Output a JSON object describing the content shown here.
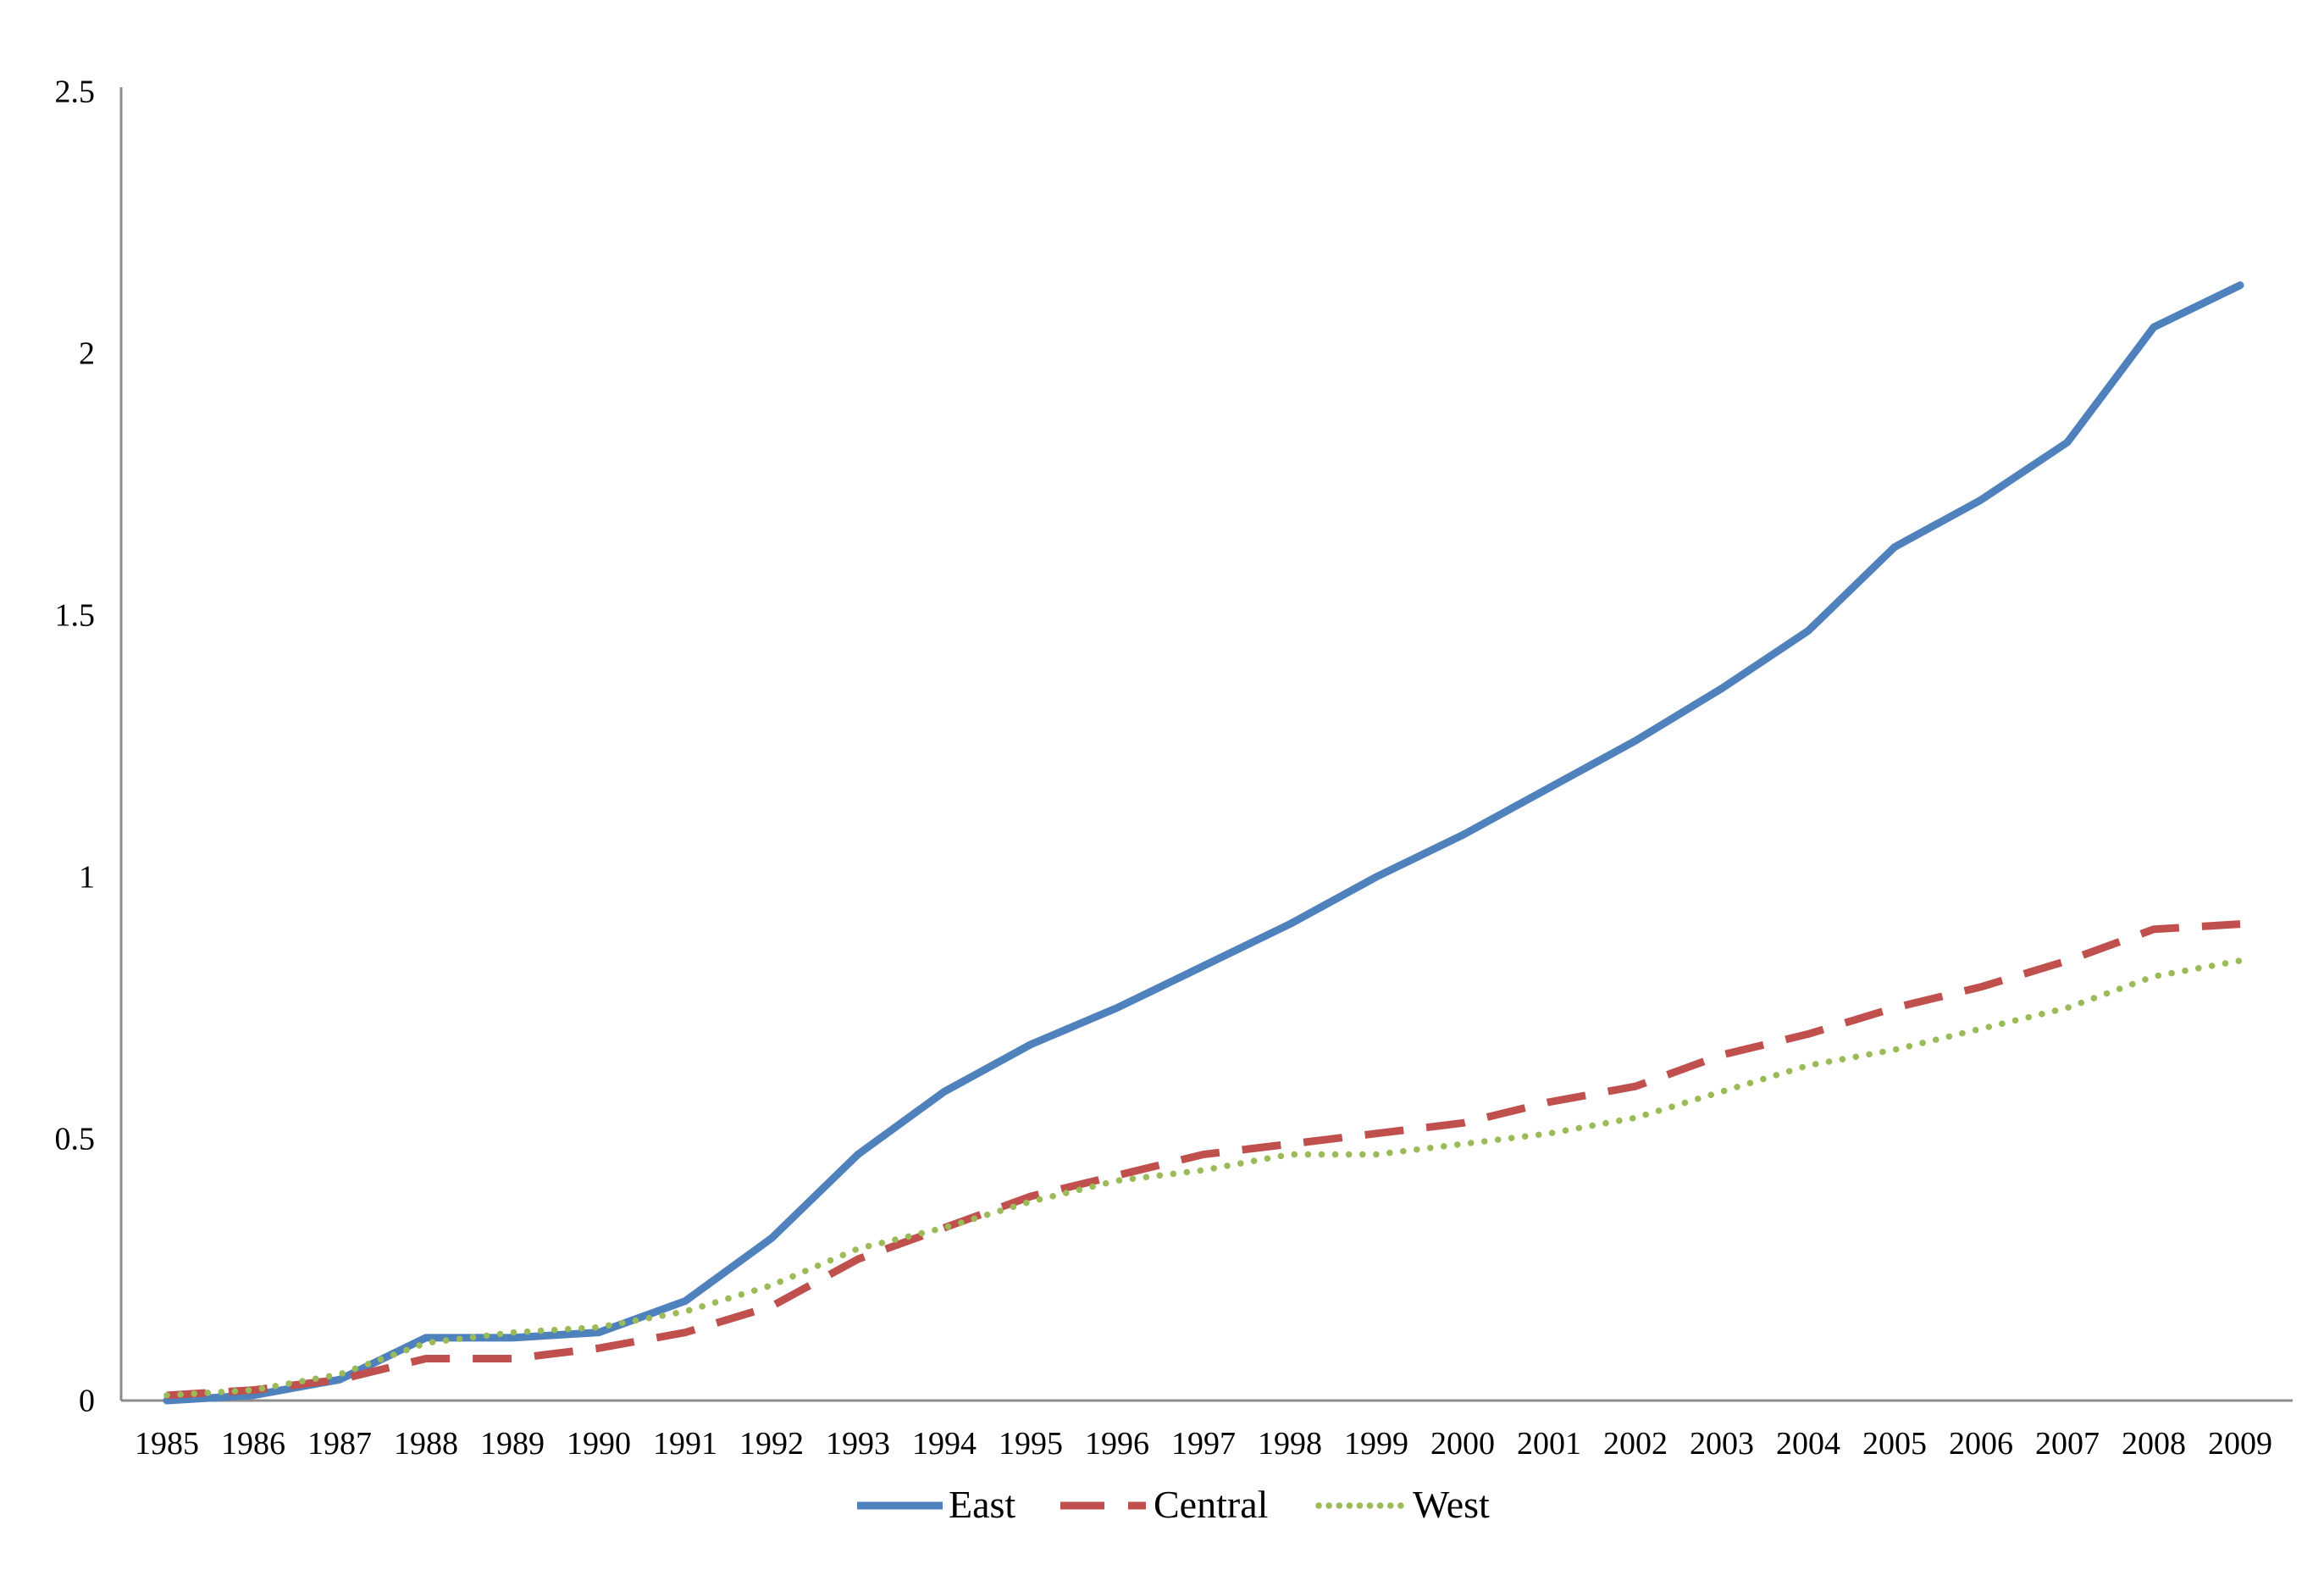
{
  "chart_data": {
    "type": "line",
    "title": "",
    "xlabel": "",
    "ylabel": "",
    "x": [
      1985,
      1986,
      1987,
      1988,
      1989,
      1990,
      1991,
      1992,
      1993,
      1994,
      1995,
      1996,
      1997,
      1998,
      1999,
      2000,
      2001,
      2002,
      2003,
      2004,
      2005,
      2006,
      2007,
      2008,
      2009
    ],
    "x_tick_labels": [
      "1985",
      "1986",
      "1987",
      "1988",
      "1989",
      "1990",
      "1991",
      "1992",
      "1993",
      "1994",
      "1995",
      "1996",
      "1997",
      "1998",
      "1999",
      "2000",
      "2001",
      "2002",
      "2003",
      "2004",
      "2005",
      "2006",
      "2007",
      "2008",
      "2009"
    ],
    "y_ticks": [
      0,
      0.5,
      1,
      1.5,
      2,
      2.5
    ],
    "y_tick_labels": [
      "0",
      "0.5",
      "1",
      "1.5",
      "2",
      "2.5"
    ],
    "xlim": [
      1985,
      2009
    ],
    "ylim": [
      0,
      2.5
    ],
    "grid": false,
    "legend_position": "bottom-center",
    "background_color": "#ffffff",
    "axis_color": "#8c8c8c",
    "text_color": "#000000",
    "series": [
      {
        "name": "East",
        "color": "#4f81bd",
        "style": "solid",
        "values": [
          0.0,
          0.01,
          0.04,
          0.12,
          0.12,
          0.13,
          0.19,
          0.31,
          0.47,
          0.59,
          0.68,
          0.75,
          0.83,
          0.91,
          1.0,
          1.08,
          1.17,
          1.26,
          1.36,
          1.47,
          1.63,
          1.72,
          1.83,
          2.05,
          2.13
        ]
      },
      {
        "name": "Central",
        "color": "#c0504d",
        "style": "dashed",
        "values": [
          0.01,
          0.02,
          0.04,
          0.08,
          0.08,
          0.1,
          0.13,
          0.18,
          0.27,
          0.33,
          0.39,
          0.43,
          0.47,
          0.49,
          0.51,
          0.53,
          0.57,
          0.6,
          0.66,
          0.7,
          0.75,
          0.79,
          0.84,
          0.9,
          0.91
        ]
      },
      {
        "name": "West",
        "color": "#9bbb59",
        "style": "dotted",
        "values": [
          0.01,
          0.02,
          0.05,
          0.11,
          0.13,
          0.14,
          0.17,
          0.22,
          0.29,
          0.33,
          0.38,
          0.42,
          0.44,
          0.47,
          0.47,
          0.49,
          0.51,
          0.54,
          0.59,
          0.64,
          0.67,
          0.71,
          0.75,
          0.81,
          0.84
        ]
      }
    ]
  }
}
